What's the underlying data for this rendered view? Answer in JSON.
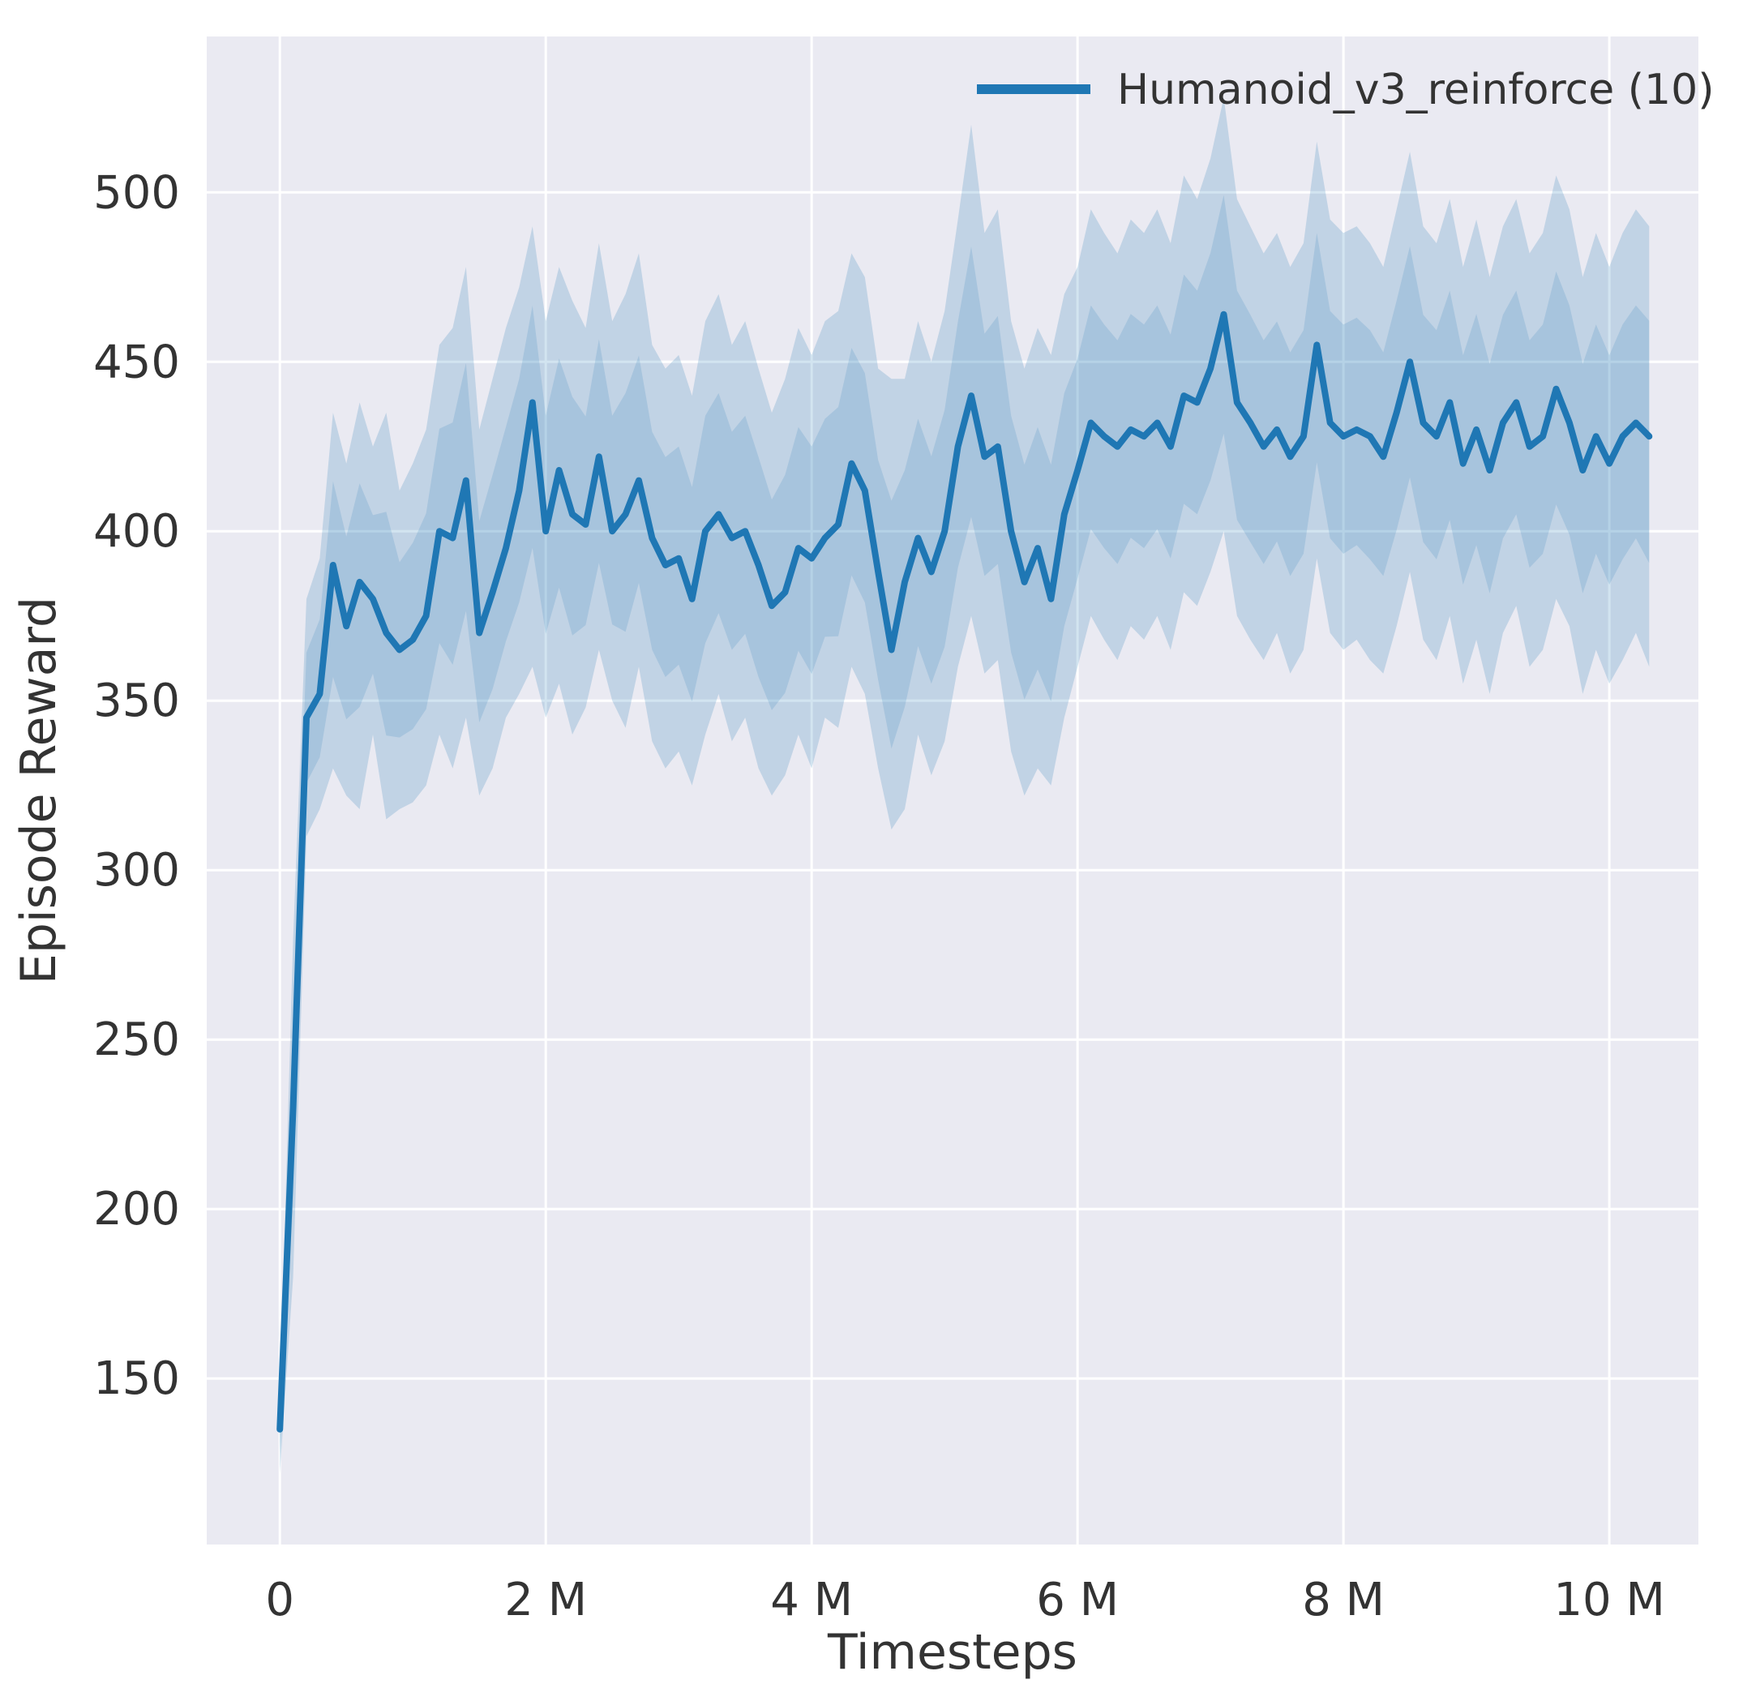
{
  "chart_data": {
    "type": "line",
    "title": "",
    "xlabel": "Timesteps",
    "ylabel": "Episode Reward",
    "legend_position": "upper right",
    "grid": true,
    "plot_bg": "#eaeaf2",
    "grid_color": "#ffffff",
    "text_color": "#333333",
    "x_unit": "millions of timesteps",
    "x_start": 0,
    "x_step": 0.1,
    "x_end": 10.3,
    "xlim": [
      -0.55,
      10.67
    ],
    "ylim": [
      101,
      546
    ],
    "xticks": {
      "values": [
        0,
        2,
        4,
        6,
        8,
        10
      ],
      "labels": [
        "0",
        "2 M",
        "4 M",
        "6 M",
        "8 M",
        "10 M"
      ]
    },
    "yticks": {
      "values": [
        150,
        200,
        250,
        300,
        350,
        400,
        450,
        500
      ],
      "labels": [
        "150",
        "200",
        "250",
        "300",
        "350",
        "400",
        "450",
        "500"
      ]
    },
    "series": [
      {
        "name": "Humanoid_v3_reinforce (10)",
        "color": "#1f77b4",
        "band_opacity": 0.2,
        "inner_band_opacity": 0.16,
        "mean": [
          135,
          230,
          345,
          352,
          390,
          372,
          385,
          380,
          370,
          365,
          368,
          375,
          400,
          398,
          415,
          370,
          382,
          395,
          412,
          438,
          400,
          418,
          405,
          402,
          422,
          400,
          405,
          415,
          398,
          390,
          392,
          380,
          400,
          405,
          398,
          400,
          390,
          378,
          382,
          395,
          392,
          398,
          402,
          420,
          412,
          388,
          365,
          385,
          398,
          388,
          400,
          425,
          440,
          422,
          425,
          400,
          385,
          395,
          380,
          405,
          418,
          432,
          428,
          425,
          430,
          428,
          432,
          425,
          440,
          438,
          448,
          464,
          438,
          432,
          425,
          430,
          422,
          428,
          455,
          432,
          428,
          430,
          428,
          422,
          435,
          450,
          432,
          428,
          438,
          420,
          430,
          418,
          432,
          438,
          425,
          428,
          442,
          432,
          418,
          428,
          420,
          428,
          432,
          428
        ],
        "lower": [
          122,
          180,
          310,
          318,
          330,
          322,
          318,
          340,
          315,
          318,
          320,
          325,
          340,
          330,
          345,
          322,
          330,
          345,
          352,
          360,
          345,
          355,
          340,
          348,
          365,
          350,
          342,
          360,
          338,
          330,
          335,
          325,
          340,
          352,
          338,
          345,
          330,
          322,
          328,
          340,
          330,
          345,
          342,
          360,
          352,
          330,
          312,
          318,
          340,
          328,
          338,
          360,
          375,
          358,
          362,
          335,
          322,
          330,
          325,
          345,
          360,
          375,
          368,
          362,
          372,
          368,
          375,
          365,
          382,
          378,
          388,
          400,
          375,
          368,
          362,
          370,
          358,
          365,
          392,
          370,
          365,
          368,
          362,
          358,
          372,
          388,
          368,
          362,
          375,
          355,
          368,
          352,
          370,
          378,
          360,
          365,
          380,
          372,
          352,
          365,
          355,
          362,
          370,
          360
        ],
        "upper": [
          145,
          280,
          380,
          392,
          435,
          420,
          438,
          425,
          435,
          412,
          420,
          430,
          455,
          460,
          478,
          430,
          445,
          460,
          472,
          490,
          462,
          478,
          468,
          460,
          485,
          462,
          470,
          482,
          455,
          448,
          452,
          440,
          462,
          470,
          455,
          462,
          448,
          435,
          445,
          460,
          452,
          462,
          465,
          482,
          475,
          448,
          445,
          445,
          462,
          450,
          465,
          492,
          520,
          488,
          495,
          462,
          448,
          460,
          452,
          470,
          478,
          495,
          488,
          482,
          492,
          488,
          495,
          485,
          505,
          498,
          510,
          528,
          498,
          490,
          482,
          488,
          478,
          485,
          515,
          492,
          488,
          490,
          485,
          478,
          495,
          512,
          490,
          485,
          498,
          478,
          492,
          475,
          490,
          498,
          482,
          488,
          505,
          495,
          475,
          488,
          478,
          488,
          495,
          490
        ]
      }
    ]
  }
}
